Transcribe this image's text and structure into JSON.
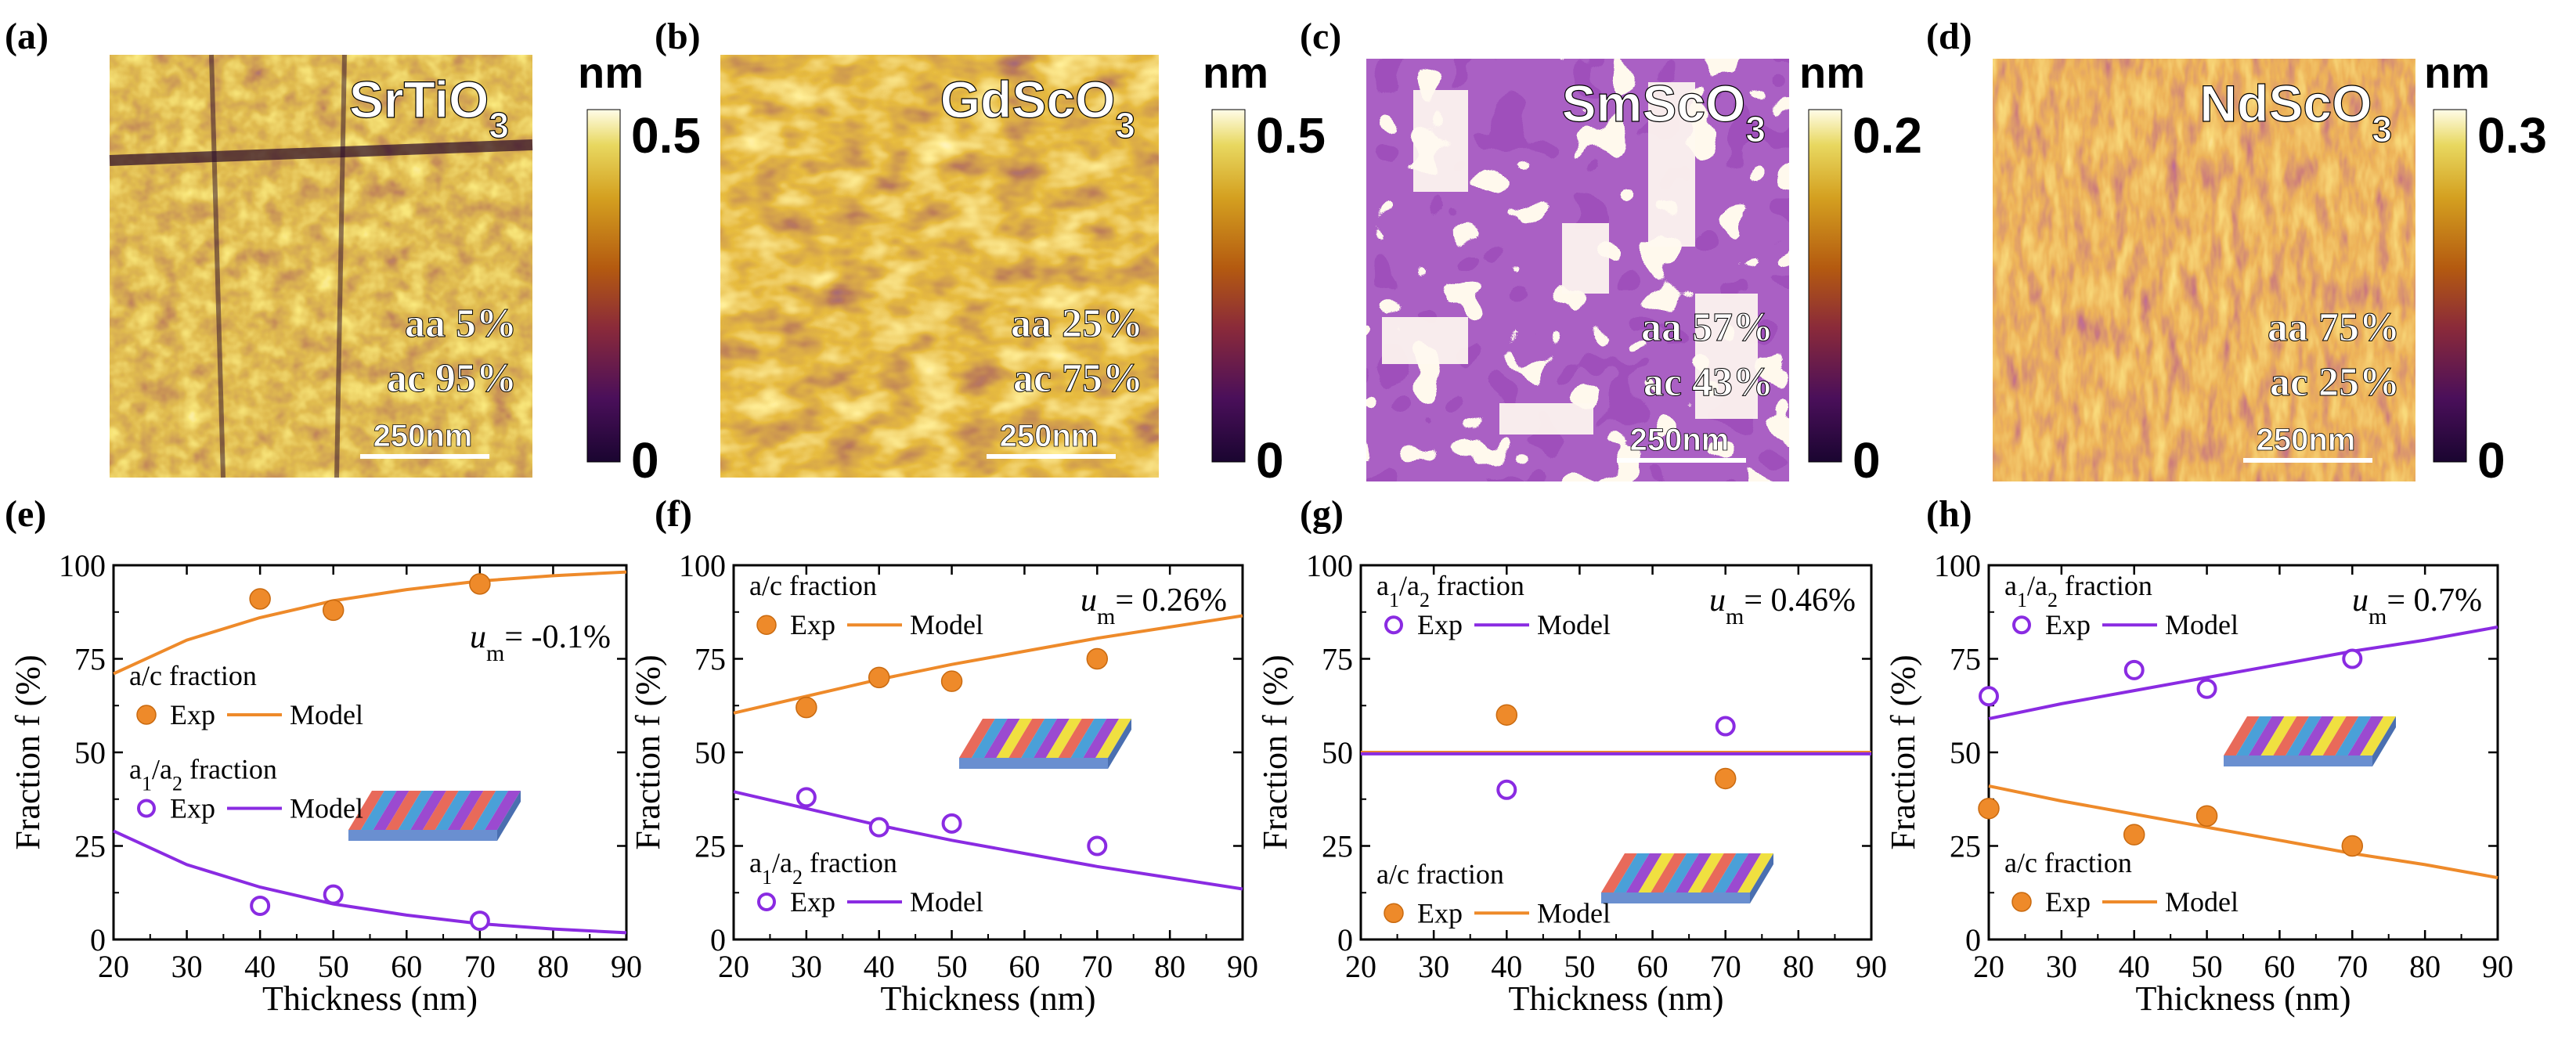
{
  "colors": {
    "orange": "#EE8A2A",
    "purple": "#8A2BE2",
    "afm_dark": "#2A0A3A",
    "afm_mid": "#A85A10",
    "afm_light": "#FFF6D0"
  },
  "afm_panels": [
    {
      "letter": "(a)",
      "title": "SrTiO3",
      "aa_label": "aa 5%",
      "ac_label": "ac 95%",
      "scale_label": "250nm",
      "cbar_unit": "nm",
      "cbar_max": "0.5",
      "cbar_min": "0",
      "lightness": 0.55
    },
    {
      "letter": "(b)",
      "title": "GdScO3",
      "aa_label": "aa 25%",
      "ac_label": "ac 75%",
      "scale_label": "250nm",
      "cbar_unit": "nm",
      "cbar_max": "0.5",
      "cbar_min": "0",
      "lightness": 0.5
    },
    {
      "letter": "(c)",
      "title": "SmScO3",
      "aa_label": "aa 57%",
      "ac_label": "ac 43%",
      "scale_label": "250nm",
      "cbar_unit": "nm",
      "cbar_max": "0.2",
      "cbar_min": "0",
      "lightness": 0.22
    },
    {
      "letter": "(d)",
      "title": "NdScO3",
      "aa_label": "aa 75%",
      "ac_label": "ac 25%",
      "scale_label": "250nm",
      "cbar_unit": "nm",
      "cbar_max": "0.3",
      "cbar_min": "0",
      "lightness": 0.4
    }
  ],
  "chart_data": [
    {
      "type": "scatter",
      "letter": "(e)",
      "xlabel": "Thickness (nm)",
      "ylabel": "Fraction f (%)",
      "xlim": [
        20,
        90
      ],
      "ylim": [
        0,
        100
      ],
      "xticks": [
        "20",
        "30",
        "40",
        "50",
        "60",
        "70",
        "80",
        "90"
      ],
      "yticks": [
        "0",
        "25",
        "50",
        "75",
        "100"
      ],
      "um_label": "-0.1%",
      "um_pos": "right-upper",
      "legend_order": [
        "ac",
        "a1a2"
      ],
      "legends": {
        "ac": {
          "title": "a/c fraction",
          "pos": "center-left"
        },
        "a1a2": {
          "title": "a1/a2 fraction",
          "pos": "lower-left"
        }
      },
      "exp_label": "Exp",
      "model_label": "Model",
      "series": {
        "ac": {
          "name": "a/c fraction",
          "exp_x": [
            40,
            50,
            70
          ],
          "exp_y": [
            91,
            88,
            95
          ],
          "model_x": [
            20,
            30,
            40,
            50,
            60,
            70,
            80,
            90
          ],
          "model_y": [
            71,
            80,
            86,
            90.5,
            93.5,
            95.8,
            97.2,
            98.2
          ]
        },
        "a1a2": {
          "name": "a1/a2 fraction",
          "exp_x": [
            40,
            50,
            70
          ],
          "exp_y": [
            9,
            12,
            5
          ],
          "model_x": [
            20,
            30,
            40,
            50,
            60,
            70,
            80,
            90
          ],
          "model_y": [
            29,
            20,
            14,
            9.5,
            6.5,
            4.2,
            2.8,
            1.8
          ]
        }
      }
    },
    {
      "type": "scatter",
      "letter": "(f)",
      "xlabel": "Thickness (nm)",
      "ylabel": "Fraction f (%)",
      "xlim": [
        20,
        90
      ],
      "ylim": [
        0,
        100
      ],
      "xticks": [
        "20",
        "30",
        "40",
        "50",
        "60",
        "70",
        "80",
        "90"
      ],
      "yticks": [
        "0",
        "25",
        "50",
        "75",
        "100"
      ],
      "um_label": "0.26%",
      "um_pos": "top-right",
      "legend_order": [
        "ac",
        "a1a2"
      ],
      "legends": {
        "ac": {
          "title": "a/c fraction",
          "pos": "top-left"
        },
        "a1a2": {
          "title": "a1/a2 fraction",
          "pos": "bottom-left"
        }
      },
      "exp_label": "Exp",
      "model_label": "Model",
      "series": {
        "ac": {
          "name": "a/c fraction",
          "exp_x": [
            30,
            40,
            50,
            70
          ],
          "exp_y": [
            62,
            70,
            69,
            75
          ],
          "model_x": [
            20,
            30,
            40,
            50,
            60,
            70,
            80,
            90
          ],
          "model_y": [
            60.5,
            65,
            69.5,
            73.5,
            77,
            80.5,
            83.5,
            86.5
          ]
        },
        "a1a2": {
          "name": "a1/a2 fraction",
          "exp_x": [
            30,
            40,
            50,
            70
          ],
          "exp_y": [
            38,
            30,
            31,
            25
          ],
          "model_x": [
            20,
            30,
            40,
            50,
            60,
            70,
            80,
            90
          ],
          "model_y": [
            39.5,
            35,
            30.5,
            26.5,
            23,
            19.5,
            16.5,
            13.5
          ]
        }
      }
    },
    {
      "type": "scatter",
      "letter": "(g)",
      "xlabel": "Thickness (nm)",
      "ylabel": "Fraction f (%)",
      "xlim": [
        20,
        90
      ],
      "ylim": [
        0,
        100
      ],
      "xticks": [
        "20",
        "30",
        "40",
        "50",
        "60",
        "70",
        "80",
        "90"
      ],
      "yticks": [
        "0",
        "25",
        "50",
        "75",
        "100"
      ],
      "um_label": "0.46%",
      "um_pos": "top-right",
      "legend_order": [
        "a1a2",
        "ac"
      ],
      "legends": {
        "a1a2": {
          "title": "a1/a2 fraction",
          "pos": "top-left"
        },
        "ac": {
          "title": "a/c fraction",
          "pos": "bottom-left"
        }
      },
      "exp_label": "Exp",
      "model_label": "Model",
      "series": {
        "ac": {
          "name": "a/c fraction",
          "exp_x": [
            40,
            70
          ],
          "exp_y": [
            60,
            43
          ],
          "model_x": [
            20,
            90
          ],
          "model_y": [
            50,
            50
          ]
        },
        "a1a2": {
          "name": "a1/a2 fraction",
          "exp_x": [
            40,
            70
          ],
          "exp_y": [
            40,
            57
          ],
          "model_x": [
            20,
            90
          ],
          "model_y": [
            49.6,
            49.6
          ]
        }
      }
    },
    {
      "type": "scatter",
      "letter": "(h)",
      "xlabel": "Thickness (nm)",
      "ylabel": "Fraction f (%)",
      "xlim": [
        20,
        90
      ],
      "ylim": [
        0,
        100
      ],
      "xticks": [
        "20",
        "30",
        "40",
        "50",
        "60",
        "70",
        "80",
        "90"
      ],
      "yticks": [
        "0",
        "25",
        "50",
        "75",
        "100"
      ],
      "um_label": "0.7%",
      "um_pos": "top-right",
      "legend_order": [
        "a1a2",
        "ac"
      ],
      "legends": {
        "a1a2": {
          "title": "a1/a2 fraction",
          "pos": "top-left"
        },
        "ac": {
          "title": "a/c fraction",
          "pos": "bottom-left"
        }
      },
      "exp_label": "Exp",
      "model_label": "Model",
      "series": {
        "ac": {
          "name": "a/c fraction",
          "exp_x": [
            20,
            40,
            50,
            70
          ],
          "exp_y": [
            35,
            28,
            33,
            25
          ],
          "model_x": [
            20,
            30,
            40,
            50,
            60,
            70,
            80,
            90
          ],
          "model_y": [
            41,
            37,
            33.5,
            30,
            26.5,
            23,
            20,
            16.5
          ]
        },
        "a1a2": {
          "name": "a1/a2 fraction",
          "exp_x": [
            20,
            40,
            50,
            70
          ],
          "exp_y": [
            65,
            72,
            67,
            75
          ],
          "model_x": [
            20,
            30,
            40,
            50,
            60,
            70,
            80,
            90
          ],
          "model_y": [
            59,
            63,
            66.5,
            70,
            73.5,
            77,
            80,
            83.5
          ]
        }
      }
    }
  ]
}
